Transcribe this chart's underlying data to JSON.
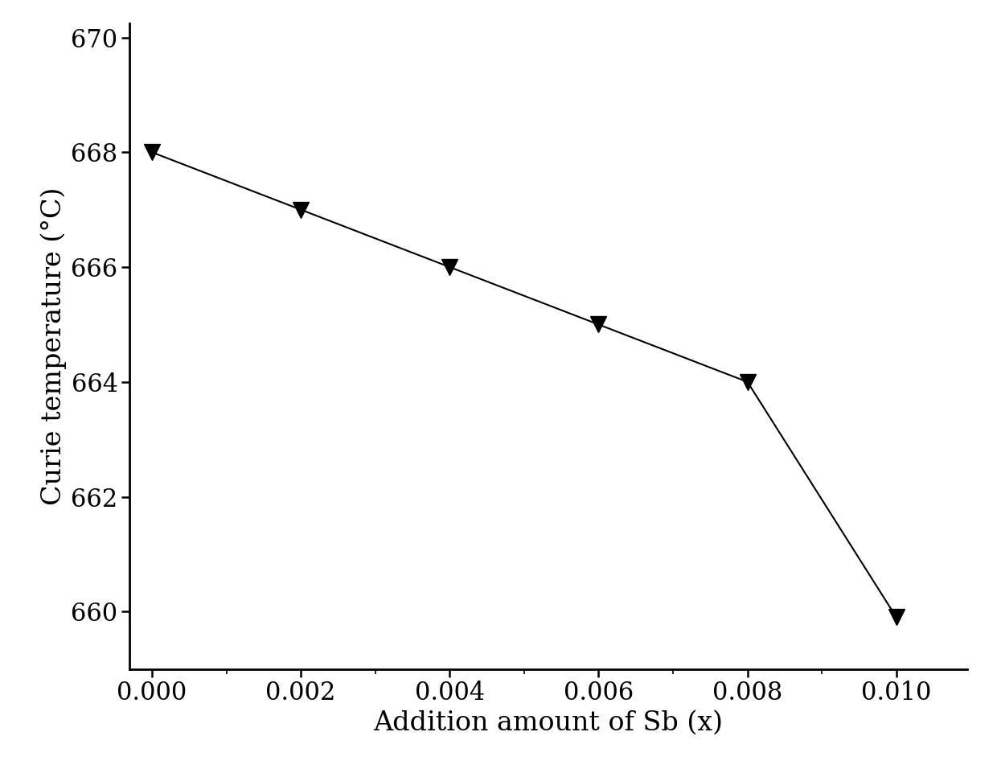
{
  "x": [
    0.0,
    0.002,
    0.004,
    0.006,
    0.008,
    0.01
  ],
  "y": [
    668.0,
    667.0,
    666.0,
    665.0,
    664.0,
    659.9
  ],
  "xlabel": "Addition amount of Sb (x)",
  "ylabel": "Curie temperature (°C)",
  "xlim": [
    -0.0003,
    0.01095
  ],
  "ylim": [
    659.0,
    670.25
  ],
  "xticks": [
    0.0,
    0.002,
    0.004,
    0.006,
    0.008,
    0.01
  ],
  "yticks": [
    660,
    662,
    664,
    666,
    668,
    670
  ],
  "xtick_labels": [
    "0.000",
    "0.002",
    "0.004",
    "0.006",
    "0.008",
    "0.010"
  ],
  "ytick_labels": [
    "660",
    "662",
    "664",
    "666",
    "668",
    "670"
  ],
  "line_color": "#000000",
  "marker": "v",
  "marker_size": 14,
  "marker_color": "#000000",
  "linewidth": 1.5,
  "xlabel_fontsize": 24,
  "ylabel_fontsize": 24,
  "tick_fontsize": 22,
  "background_color": "#ffffff",
  "spine_linewidth": 2.0
}
